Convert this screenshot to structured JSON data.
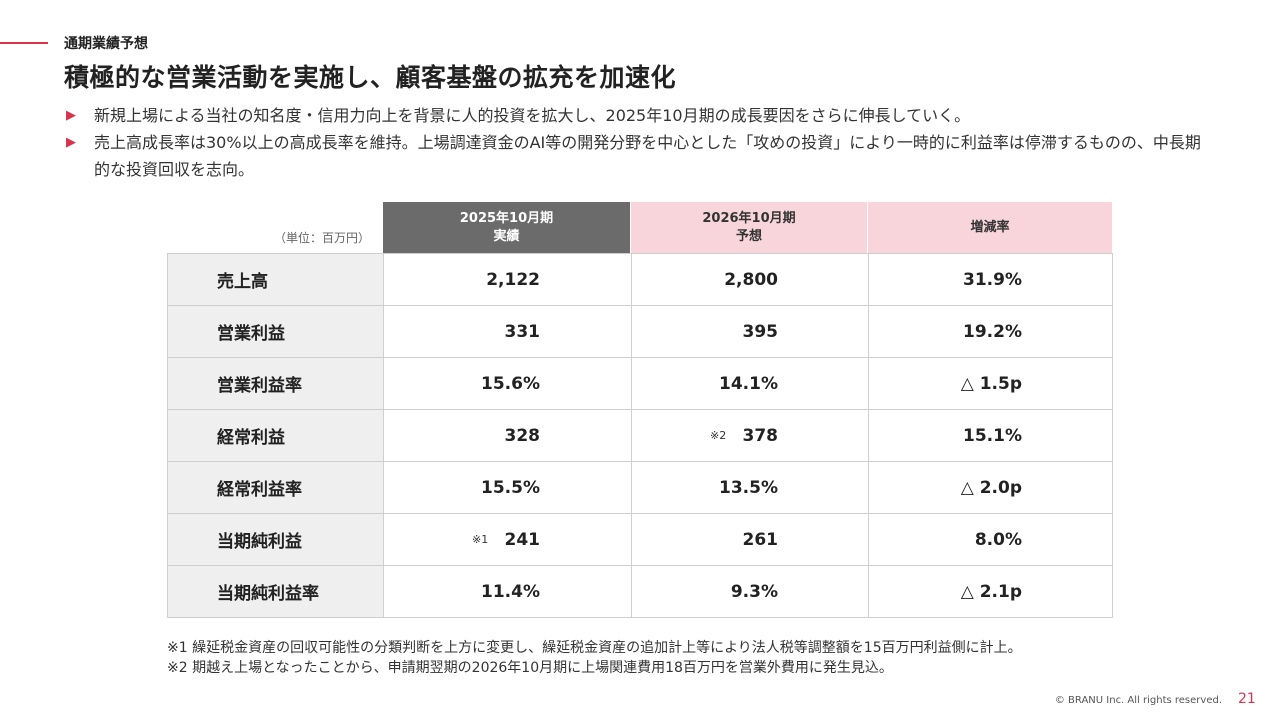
{
  "header": {
    "section_label": "通期業績予想",
    "headline": "積極的な営業活動を実施し、顧客基盤の拡充を加速化"
  },
  "bullets": [
    "新規上場による当社の知名度・信用力向上を背景に人的投資を拡大し、2025年10月期の成長要因をさらに伸長していく。",
    "売上高成長率は30%以上の高成長率を維持。上場調達資金のAI等の開発分野を中心とした「攻めの投資」により一時的に利益率は停滞するものの、中長期的な投資回収を志向。"
  ],
  "table": {
    "unit": "（単位：百万円）",
    "headers": {
      "actual_line1": "2025年10月期",
      "actual_line2": "実績",
      "forecast_line1": "2026年10月期",
      "forecast_line2": "予想",
      "rate": "増減率"
    },
    "rows": [
      {
        "label": "売上高",
        "actual": "2,122",
        "forecast": "2,800",
        "rate": "31.9%"
      },
      {
        "label": "営業利益",
        "actual": "331",
        "forecast": "395",
        "rate": "19.2%"
      },
      {
        "label": "営業利益率",
        "actual": "15.6%",
        "forecast": "14.1%",
        "rate": "△ 1.5p"
      },
      {
        "label": "経常利益",
        "actual": "328",
        "forecast": "378",
        "forecast_note": "※2",
        "rate": "15.1%"
      },
      {
        "label": "経常利益率",
        "actual": "15.5%",
        "forecast": "13.5%",
        "rate": "△ 2.0p"
      },
      {
        "label": "当期純利益",
        "actual": "241",
        "actual_note": "※1",
        "forecast": "261",
        "rate": "8.0%"
      },
      {
        "label": "当期純利益率",
        "actual": "11.4%",
        "forecast": "9.3%",
        "rate": "△ 2.1p"
      }
    ]
  },
  "footnotes": [
    "※1  繰延税金資産の回収可能性の分類判断を上方に変更し、繰延税金資産の追加計上等により法人税等調整額を15百万円利益側に計上。",
    "※2  期越え上場となったことから、申請期翌期の2026年10月期に上場関連費用18百万円を営業外費用に発生見込。"
  ],
  "footer": {
    "copyright": "© BRANU Inc. All rights reserved.",
    "page_number": "21"
  },
  "colors": {
    "accent": "#d9334b",
    "header_actual_bg": "#6b6b6b",
    "header_forecast_bg": "#f7d5db",
    "label_bg": "#efefef"
  }
}
